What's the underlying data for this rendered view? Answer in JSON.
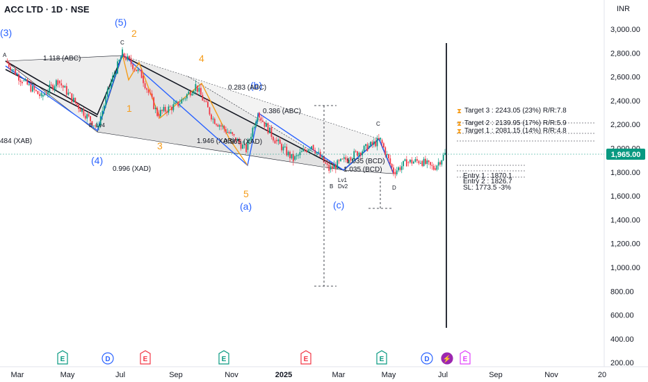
{
  "header": {
    "title": "ACC LTD · 1D · NSE",
    "currency": "INR"
  },
  "price_axis": {
    "ticks": [
      "3,000.00",
      "2,800.00",
      "2,600.00",
      "2,400.00",
      "2,200.00",
      "2,000.00",
      "1,800.00",
      "1,600.00",
      "1,400.00",
      "1,200.00",
      "1,000.00",
      "800.00",
      "600.00",
      "400.00",
      "200.00"
    ],
    "last_price": "1,965.00",
    "last_price_color": "#089981"
  },
  "time_axis": {
    "ticks": [
      "Mar",
      "May",
      "Jul",
      "Sep",
      "Nov",
      "2025",
      "Mar",
      "May",
      "Jul",
      "Sep",
      "Nov",
      "20"
    ]
  },
  "waves": {
    "blue": [
      "(3)",
      "(5)",
      "(4)",
      "(b)",
      "(a)",
      "(c)"
    ],
    "orange": [
      "2",
      "4",
      "1",
      "3",
      "5"
    ]
  },
  "annotations": {
    "r1": "1.118  (ABC)",
    "r2": "0.283  (ABC)",
    "r3": "0.386  (ABC)",
    "r4": "484  (XAB)",
    "r5": "1.946  (XAB)",
    "r6": "0.965  (XAD)",
    "r7": "0.996  (XAD)",
    "r8": "1.035  (BCD)",
    "r9": "1.035  (BCD)",
    "pt_a": "A",
    "pt_c1": "C",
    "pt_b": "B",
    "pt_b4": "Lv4",
    "pt_b2": "B",
    "pt_lv1": "Lv1",
    "pt_lv2": "Dv2",
    "pt_c2": "C",
    "pt_d": "D"
  },
  "targets": {
    "t3": "Target 3 : 2243.05 (23%) R/R:7.8",
    "t2": "Target 2 : 2139.95 (17%) R/R:5.9",
    "t1": "Target 1 : 2081.15 (14%) R/R:4.8",
    "e1": "Entry 1 : 1870.1",
    "e2": "Entry 2 : 1826.7",
    "sl": "SL: 1773.5 -3%"
  },
  "events": [
    {
      "letter": "E",
      "color": "#089981"
    },
    {
      "letter": "D",
      "color": "#2962ff"
    },
    {
      "letter": "E",
      "color": "#f23645"
    },
    {
      "letter": "E",
      "color": "#089981"
    },
    {
      "letter": "E",
      "color": "#f23645"
    },
    {
      "letter": "E",
      "color": "#089981"
    },
    {
      "letter": "D",
      "color": "#2962ff"
    },
    {
      "letter": "⚡",
      "color": "#9c27b0"
    },
    {
      "letter": "E",
      "color": "#e040fb"
    }
  ],
  "chart_data": {
    "type": "candlestick",
    "symbol": "ACC LTD",
    "interval": "1D",
    "exchange": "NSE",
    "ylim": [
      200,
      3100
    ],
    "ohlc_close_path": [
      {
        "x": "2024-02-20",
        "y": 2720
      },
      {
        "x": "2024-03-10",
        "y": 2560
      },
      {
        "x": "2024-04-01",
        "y": 2430
      },
      {
        "x": "2024-04-20",
        "y": 2560
      },
      {
        "x": "2024-05-10",
        "y": 2380
      },
      {
        "x": "2024-06-04",
        "y": 2180
      },
      {
        "x": "2024-06-20",
        "y": 2550
      },
      {
        "x": "2024-07-03",
        "y": 2780
      },
      {
        "x": "2024-07-25",
        "y": 2600
      },
      {
        "x": "2024-08-12",
        "y": 2290
      },
      {
        "x": "2024-09-05",
        "y": 2370
      },
      {
        "x": "2024-09-25",
        "y": 2520
      },
      {
        "x": "2024-10-15",
        "y": 2250
      },
      {
        "x": "2024-11-08",
        "y": 2100
      },
      {
        "x": "2024-11-22",
        "y": 2000
      },
      {
        "x": "2024-12-05",
        "y": 2300
      },
      {
        "x": "2024-12-25",
        "y": 2080
      },
      {
        "x": "2025-01-15",
        "y": 1920
      },
      {
        "x": "2025-02-05",
        "y": 2040
      },
      {
        "x": "2025-02-25",
        "y": 1840
      },
      {
        "x": "2025-03-20",
        "y": 1940
      },
      {
        "x": "2025-04-10",
        "y": 2020
      },
      {
        "x": "2025-04-25",
        "y": 2080
      },
      {
        "x": "2025-05-10",
        "y": 1820
      },
      {
        "x": "2025-05-25",
        "y": 1900
      },
      {
        "x": "2025-06-10",
        "y": 1910
      },
      {
        "x": "2025-06-25",
        "y": 1850
      },
      {
        "x": "2025-07-08",
        "y": 1965
      }
    ]
  }
}
